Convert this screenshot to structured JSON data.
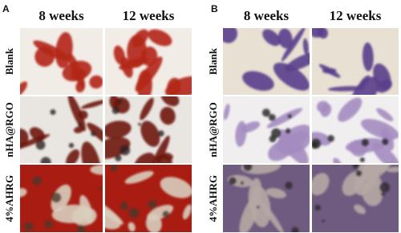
{
  "panels": [
    {
      "label": "A",
      "columns": [
        "8 weeks",
        "12 weeks"
      ],
      "rows": [
        "Blank",
        "nHA@RGO",
        "4%AHRG"
      ]
    },
    {
      "label": "B",
      "columns": [
        "8 weeks",
        "12 weeks"
      ],
      "rows": [
        "Blank",
        "nHA@RGO",
        "4%AHRG"
      ]
    }
  ]
}
